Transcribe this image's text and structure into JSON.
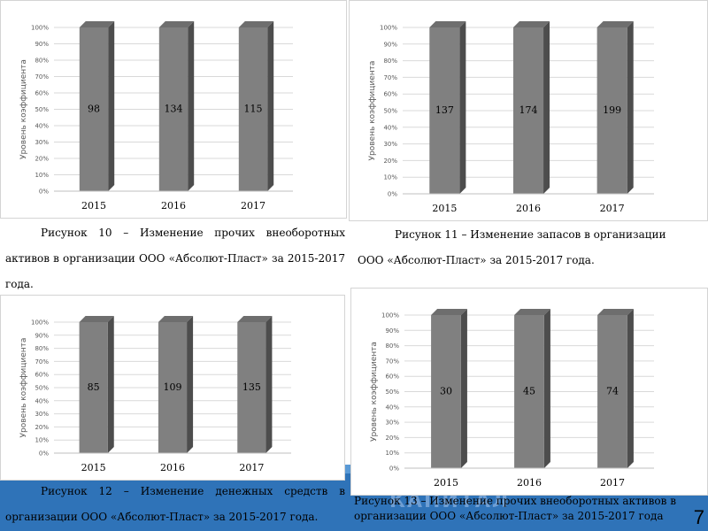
{
  "ui": {
    "accent": "#2f73b8",
    "band_text": "КАПИТАЛ",
    "page_number": "7"
  },
  "captions": [
    {
      "text": "Рисунок 10 – Изменение прочих внеоборотных активов в организации ООО «Абсолют-Пласт» за 2015-2017 года."
    },
    {
      "text": "Рисунок 11 – Изменение запасов в организации ООО «Абсолют-Пласт» за 2015-2017 года."
    },
    {
      "text": "Рисунок 12 – Изменение денежных средств в организации ООО «Абсолют-Пласт» за 2015-2017 года."
    },
    {
      "text": "Рисунок 13 – Изменение прочих внеоборотных активов в организации ООО «Абсолют-Пласт» за 2015-2017 года"
    }
  ],
  "chart_data": [
    {
      "type": "bar",
      "title": "",
      "xlabel": "",
      "ylabel": "Уровень коэффициента",
      "categories": [
        "2015",
        "2016",
        "2017"
      ],
      "values": [
        100,
        100,
        100
      ],
      "data_labels": [
        "98",
        "134",
        "115"
      ],
      "ylim": [
        0,
        100
      ],
      "yticks": [
        "0%",
        "10%",
        "20%",
        "30%",
        "40%",
        "50%",
        "60%",
        "70%",
        "80%",
        "90%",
        "100%"
      ],
      "bar_color": "#808080",
      "grid": true
    },
    {
      "type": "bar",
      "title": "",
      "xlabel": "",
      "ylabel": "Уровень коэффициента",
      "categories": [
        "2015",
        "2016",
        "2017"
      ],
      "values": [
        100,
        100,
        100
      ],
      "data_labels": [
        "137",
        "174",
        "199"
      ],
      "ylim": [
        0,
        100
      ],
      "yticks": [
        "0%",
        "10%",
        "20%",
        "30%",
        "40%",
        "50%",
        "60%",
        "70%",
        "80%",
        "90%",
        "100%"
      ],
      "bar_color": "#808080",
      "grid": true
    },
    {
      "type": "bar",
      "title": "",
      "xlabel": "",
      "ylabel": "Уровень коэффициента",
      "categories": [
        "2015",
        "2016",
        "2017"
      ],
      "values": [
        100,
        100,
        100
      ],
      "data_labels": [
        "85",
        "109",
        "135"
      ],
      "ylim": [
        0,
        100
      ],
      "yticks": [
        "0%",
        "10%",
        "20%",
        "30%",
        "40%",
        "50%",
        "60%",
        "70%",
        "80%",
        "90%",
        "100%"
      ],
      "bar_color": "#808080",
      "grid": true
    },
    {
      "type": "bar",
      "title": "",
      "xlabel": "",
      "ylabel": "Уровень коэффициента",
      "categories": [
        "2015",
        "2016",
        "2017"
      ],
      "values": [
        100,
        100,
        100
      ],
      "data_labels": [
        "30",
        "45",
        "74"
      ],
      "ylim": [
        0,
        100
      ],
      "yticks": [
        "0%",
        "10%",
        "20%",
        "30%",
        "40%",
        "50%",
        "60%",
        "70%",
        "80%",
        "90%",
        "100%"
      ],
      "bar_color": "#808080",
      "grid": true
    }
  ]
}
